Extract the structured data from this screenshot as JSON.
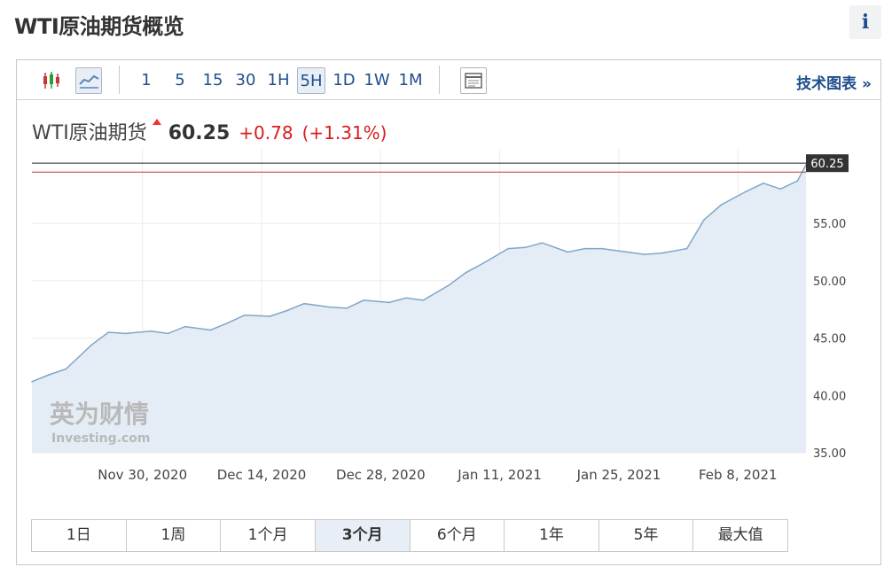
{
  "page": {
    "title": "WTI原油期货概览",
    "info_icon": "i"
  },
  "toolbar": {
    "icons": [
      "candlestick-chart-icon",
      "line-chart-icon"
    ],
    "timeframes": [
      "1",
      "5",
      "15",
      "30",
      "1H",
      "5H",
      "1D",
      "1W",
      "1M"
    ],
    "selected_timeframe": "5H",
    "table_icon": "table-icon",
    "tech_chart_link": "技术图表 »"
  },
  "quote": {
    "name": "WTI原油期货",
    "price": "60.25",
    "change": "+0.78",
    "change_pct": "(+1.31%)"
  },
  "watermark": {
    "cn": "英为财情",
    "en": "Investing.com"
  },
  "ranges": [
    "1日",
    "1周",
    "1个月",
    "3个月",
    "6个月",
    "1年",
    "5年",
    "最大值"
  ],
  "selected_range": "3个月",
  "colors": {
    "link": "#1f4e8c",
    "up": "#d91c1c",
    "area_fill": "#e4edf6",
    "line": "#7fa6c9"
  },
  "chart_data": {
    "type": "area",
    "title": "",
    "x": [
      "2020-11-17",
      "2020-11-19",
      "2020-11-21",
      "2020-11-24",
      "2020-11-26",
      "2020-11-28",
      "2020-12-01",
      "2020-12-03",
      "2020-12-05",
      "2020-12-08",
      "2020-12-10",
      "2020-12-12",
      "2020-12-15",
      "2020-12-17",
      "2020-12-19",
      "2020-12-22",
      "2020-12-24",
      "2020-12-26",
      "2020-12-29",
      "2020-12-31",
      "2021-01-02",
      "2021-01-05",
      "2021-01-07",
      "2021-01-09",
      "2021-01-12",
      "2021-01-14",
      "2021-01-16",
      "2021-01-19",
      "2021-01-21",
      "2021-01-23",
      "2021-01-26",
      "2021-01-28",
      "2021-01-30",
      "2021-02-02",
      "2021-02-04",
      "2021-02-06",
      "2021-02-09",
      "2021-02-11",
      "2021-02-13",
      "2021-02-15",
      "2021-02-16"
    ],
    "values": [
      41.2,
      41.8,
      42.3,
      44.4,
      45.5,
      45.4,
      45.6,
      45.4,
      46.0,
      45.7,
      46.3,
      47.0,
      46.9,
      47.4,
      48.0,
      47.7,
      47.6,
      48.3,
      48.1,
      48.5,
      48.3,
      49.6,
      50.7,
      51.5,
      52.8,
      52.9,
      53.3,
      52.5,
      52.8,
      52.8,
      52.5,
      52.3,
      52.4,
      52.8,
      55.3,
      56.6,
      57.8,
      58.5,
      58.0,
      58.7,
      60.1
    ],
    "last_value": 60.25,
    "reference_line": 59.47,
    "xlabel": "",
    "ylabel": "",
    "x_ticks": [
      "Nov 30, 2020",
      "Dec 14, 2020",
      "Dec 28, 2020",
      "Jan 11, 2021",
      "Jan 25, 2021",
      "Feb 8, 2021"
    ],
    "y_ticks": [
      "35.00",
      "40.00",
      "45.00",
      "50.00",
      "55.00"
    ],
    "ylim": [
      35,
      61.5
    ],
    "grid": true,
    "legend": "none"
  }
}
